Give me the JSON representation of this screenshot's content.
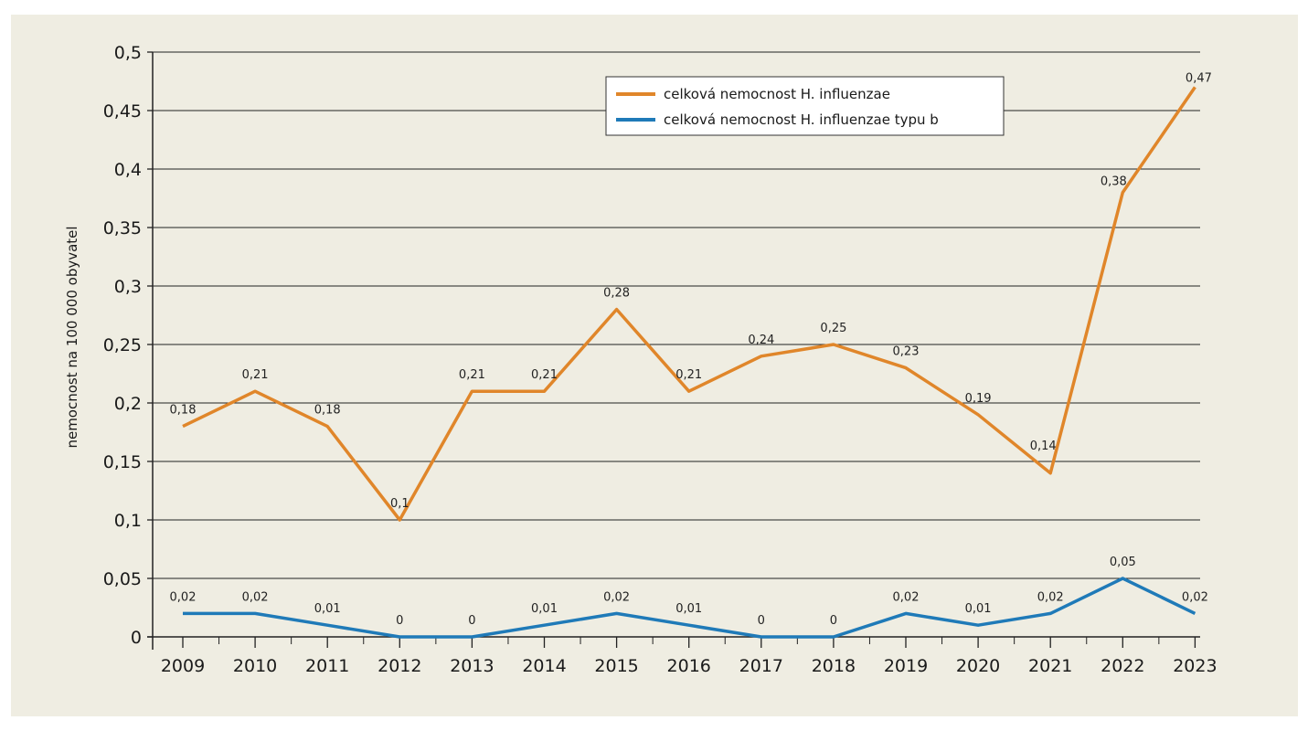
{
  "chart_data": {
    "type": "line",
    "ylabel": "nemocnost na 100 000 obyvatel",
    "ylim": [
      0,
      0.5
    ],
    "yticks": [
      0,
      0.05,
      0.1,
      0.15,
      0.2,
      0.25,
      0.3,
      0.35,
      0.4,
      0.45,
      0.5
    ],
    "ytick_labels": [
      "0",
      "0,05",
      "0,1",
      "0,15",
      "0,2",
      "0,25",
      "0,3",
      "0,35",
      "0,4",
      "0,45",
      "0,5"
    ],
    "x": [
      "2009",
      "2010",
      "2011",
      "2012",
      "2013",
      "2014",
      "2015",
      "2016",
      "2017",
      "2018",
      "2019",
      "2020",
      "2021",
      "2022",
      "2023"
    ],
    "grid": true,
    "legend_position": "top-right",
    "series": [
      {
        "name": "celková nemocnost H. influenzae",
        "color": "#e0862a",
        "values": [
          0.18,
          0.21,
          0.18,
          0.1,
          0.21,
          0.21,
          0.28,
          0.21,
          0.24,
          0.25,
          0.23,
          0.19,
          0.14,
          0.38,
          0.47
        ],
        "labels": [
          "0,18",
          "0,21",
          "0,18",
          "0,1",
          "0,21",
          "0,21",
          "0,28",
          "0,21",
          "0,24",
          "0,25",
          "0,23",
          "0,19",
          "0,14",
          "0,38",
          "0,47"
        ]
      },
      {
        "name": "celková nemocnost H. influenzae typu b",
        "color": "#1f7ab8",
        "values": [
          0.02,
          0.02,
          0.01,
          0,
          0,
          0.01,
          0.02,
          0.01,
          0,
          0,
          0.02,
          0.01,
          0.02,
          0.05,
          0.02
        ],
        "labels": [
          "0,02",
          "0,02",
          "0,01",
          "0",
          "0",
          "0,01",
          "0,02",
          "0,01",
          "0",
          "0",
          "0,02",
          "0,01",
          "0,02",
          "0,05",
          "0,02"
        ]
      }
    ]
  }
}
